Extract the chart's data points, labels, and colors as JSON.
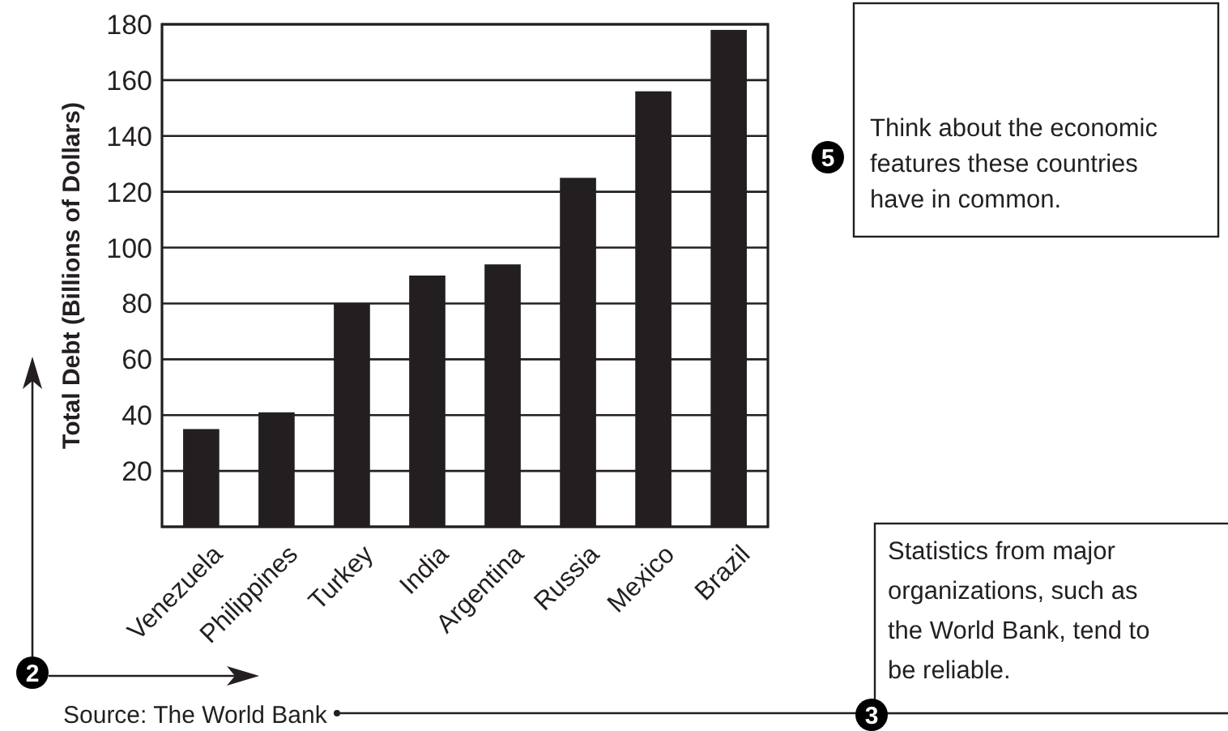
{
  "chart_data": {
    "type": "bar",
    "ylabel": "Total Debt (Billions of Dollars)",
    "categories": [
      "Venezuela",
      "Philippines",
      "Turkey",
      "India",
      "Argentina",
      "Russia",
      "Mexico",
      "Brazil"
    ],
    "values": [
      35,
      41,
      80,
      90,
      94,
      125,
      156,
      178
    ],
    "color": "#231f20",
    "ylim": [
      0,
      180
    ],
    "yticks": [
      {
        "value": 0,
        "label": null
      },
      20,
      40,
      60,
      80,
      100,
      120,
      140,
      160,
      180
    ],
    "grid": "y",
    "annotations": [
      "Source: The World Bank",
      "Think about the economic features these countries have in common.",
      "Statistics from major organizations, such as the World Bank, tend to be reliable.",
      "2",
      "3",
      "5"
    ]
  }
}
